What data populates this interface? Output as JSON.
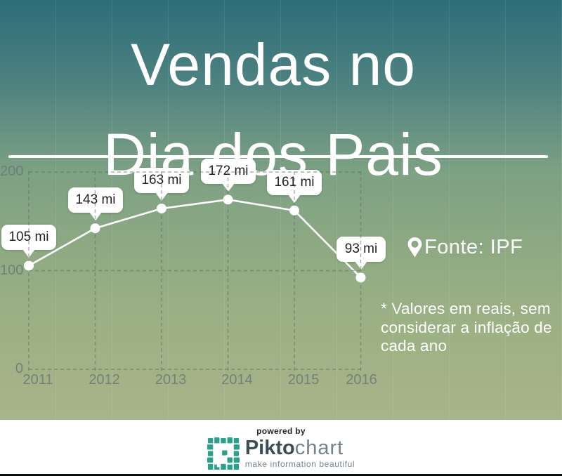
{
  "title": {
    "line1": "Vendas no",
    "line2": "Dia dos Pais"
  },
  "chart_data": {
    "type": "line",
    "title": "Vendas no Dia dos Pais",
    "categories": [
      "2011",
      "2012",
      "2013",
      "2014",
      "2015",
      "2016"
    ],
    "values": [
      105,
      143,
      163,
      172,
      161,
      93
    ],
    "point_labels": [
      "105 mi",
      "143 mi",
      "163 mi",
      "172 mi",
      "161 mi",
      "93 mi"
    ],
    "unit": "mi",
    "xlabel": "",
    "ylabel": "",
    "ylim": [
      0,
      200
    ],
    "yticks": [
      0,
      100,
      200
    ],
    "grid": "dashed",
    "legend": "none",
    "line_color": "#ffffff",
    "marker_color": "#ffffff",
    "bubble_bg": "#ffffff",
    "bubble_text_color": "#1f1f1f",
    "axis_label_color": "#6e7a79"
  },
  "source": {
    "icon": "location-pin-icon",
    "text": "Fonte: IPF"
  },
  "note": {
    "text": "* Valores em reais, sem\nconsiderar a inflação de\ncada ano"
  },
  "footer": {
    "powered_by": "powered by",
    "brand_bold": "Pikto",
    "brand_light": "chart",
    "tagline": "make information beautiful"
  },
  "colors": {
    "bg_top": "#2c6d79",
    "bg_mid": "#7da183",
    "bg_bottom": "#a7b588",
    "separator": "#ffffff",
    "brand_teal": "#2aa18b",
    "brand_dark": "#3b4d57",
    "brand_gray": "#75828a",
    "footer_bg": "#ffffff",
    "bottom_bar": "#0e1112"
  }
}
